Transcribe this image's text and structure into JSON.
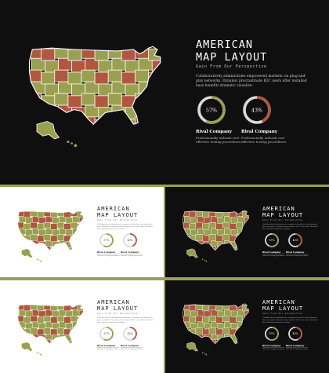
{
  "slide": {
    "title_line1": "AMERICAN",
    "title_line2": "MAP LAYOUT",
    "subtitle": "Gain From Our Perspective",
    "body": "Collaboratively administrate empowered markets via plug-and-play networks. Dynamic procrastinate B2C users after installed base benefits dramatic visualize.",
    "left_percent": "57%",
    "right_percent": "43%",
    "left_value": 57,
    "right_value": 43,
    "left_caption_title": "Rival Company",
    "left_caption_text": "Professionally unleash cost-effective testing procedures.",
    "right_caption_title": "Rival Company",
    "right_caption_text": "Professionally unleash cost-effective testing procedures."
  },
  "colors": {
    "olive": "#9aa14e",
    "brick": "#b0573e",
    "dark_bg": "#0f0f0f",
    "light_bg": "#ffffff",
    "ring_track": "#d9d9d9"
  }
}
